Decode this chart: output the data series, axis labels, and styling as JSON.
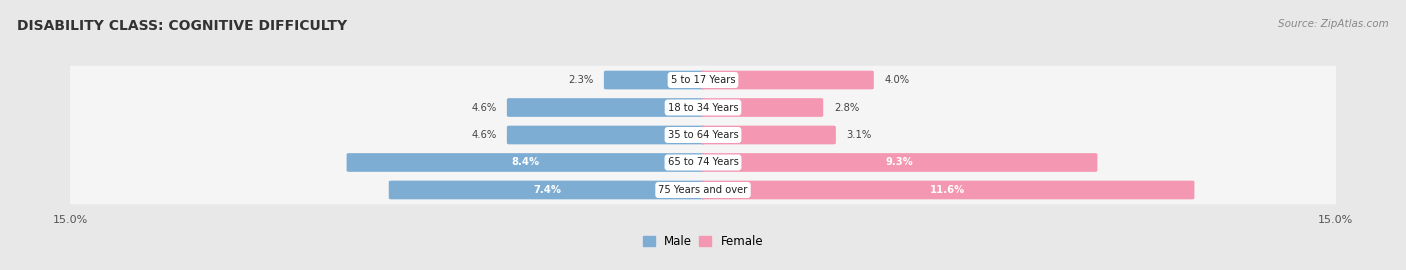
{
  "title": "DISABILITY CLASS: COGNITIVE DIFFICULTY",
  "source": "Source: ZipAtlas.com",
  "categories": [
    "5 to 17 Years",
    "18 to 34 Years",
    "35 to 64 Years",
    "65 to 74 Years",
    "75 Years and over"
  ],
  "male_values": [
    2.3,
    4.6,
    4.6,
    8.4,
    7.4
  ],
  "female_values": [
    4.0,
    2.8,
    3.1,
    9.3,
    11.6
  ],
  "male_color": "#7eadd4",
  "female_color": "#f497b2",
  "male_color_dark": "#5a8fc0",
  "female_color_dark": "#e8538a",
  "xlim": 15.0,
  "background_color": "#e8e8e8",
  "row_bg_color": "#f5f5f5",
  "title_fontsize": 10,
  "legend_labels": [
    "Male",
    "Female"
  ],
  "inside_threshold": 7.0
}
